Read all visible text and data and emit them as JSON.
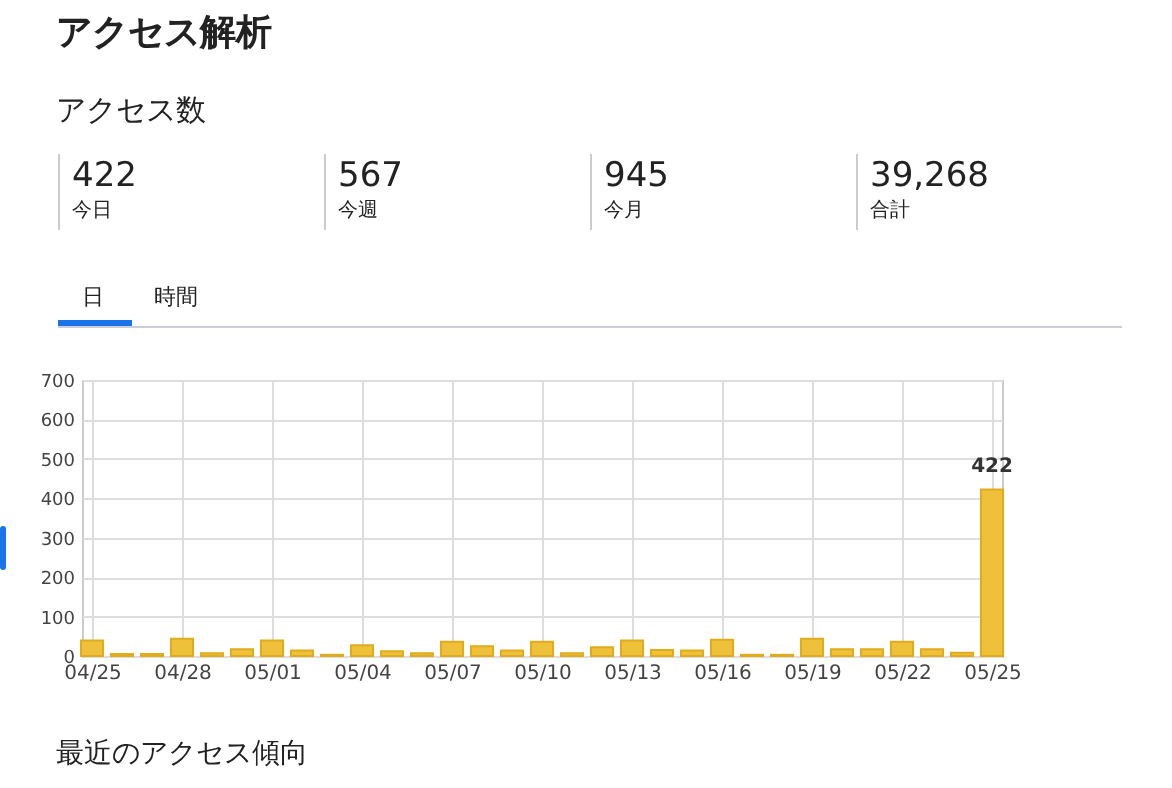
{
  "chart_data": {
    "type": "bar",
    "title": "アクセス解析",
    "subtitle": "アクセス数",
    "annotations": [
      "422",
      "今日",
      "567",
      "今週",
      "945",
      "今月",
      "39,268",
      "合計",
      "日",
      "時間",
      "最近のアクセス傾向"
    ],
    "x": [
      "--04-25",
      "--04-26",
      "--04-27",
      "--04-28",
      "--04-29",
      "--04-30",
      "--05-01",
      "--05-02",
      "--05-03",
      "--05-04",
      "--05-05",
      "--05-06",
      "--05-07",
      "--05-08",
      "--05-09",
      "--05-10",
      "--05-11",
      "--05-12",
      "--05-13",
      "--05-14",
      "--05-15",
      "--05-16",
      "--05-17",
      "--05-18",
      "--05-19",
      "--05-20",
      "--05-21",
      "--05-22",
      "--05-23",
      "--05-24",
      "--05-25"
    ],
    "values": [
      39,
      5,
      5,
      44,
      7,
      17,
      39,
      14,
      3,
      27,
      12,
      7,
      36,
      25,
      14,
      36,
      7,
      22,
      39,
      15,
      14,
      41,
      3,
      3,
      44,
      17,
      17,
      36,
      17,
      8,
      422
    ],
    "value_labels": [
      null,
      null,
      null,
      null,
      null,
      null,
      null,
      null,
      null,
      null,
      null,
      null,
      null,
      null,
      null,
      null,
      null,
      null,
      null,
      null,
      null,
      null,
      null,
      null,
      null,
      null,
      null,
      null,
      null,
      null,
      "422"
    ],
    "color": "#efc13b",
    "xlim": [
      "--04-25",
      "--05-25"
    ],
    "xticks": [
      {
        "value": "--04-25",
        "label": "04/25"
      },
      {
        "value": "--04-28",
        "label": "04/28"
      },
      {
        "value": "--05-01",
        "label": "05/01"
      },
      {
        "value": "--05-04",
        "label": "05/04"
      },
      {
        "value": "--05-07",
        "label": "05/07"
      },
      {
        "value": "--05-10",
        "label": "05/10"
      },
      {
        "value": "--05-13",
        "label": "05/13"
      },
      {
        "value": "--05-16",
        "label": "05/16"
      },
      {
        "value": "--05-19",
        "label": "05/19"
      },
      {
        "value": "--05-22",
        "label": "05/22"
      },
      {
        "value": "--05-25",
        "label": "05/25"
      }
    ],
    "ylim": [
      0,
      700
    ],
    "yticks": [
      0,
      100,
      200,
      300,
      400,
      500,
      600,
      700
    ],
    "grid": true
  }
}
